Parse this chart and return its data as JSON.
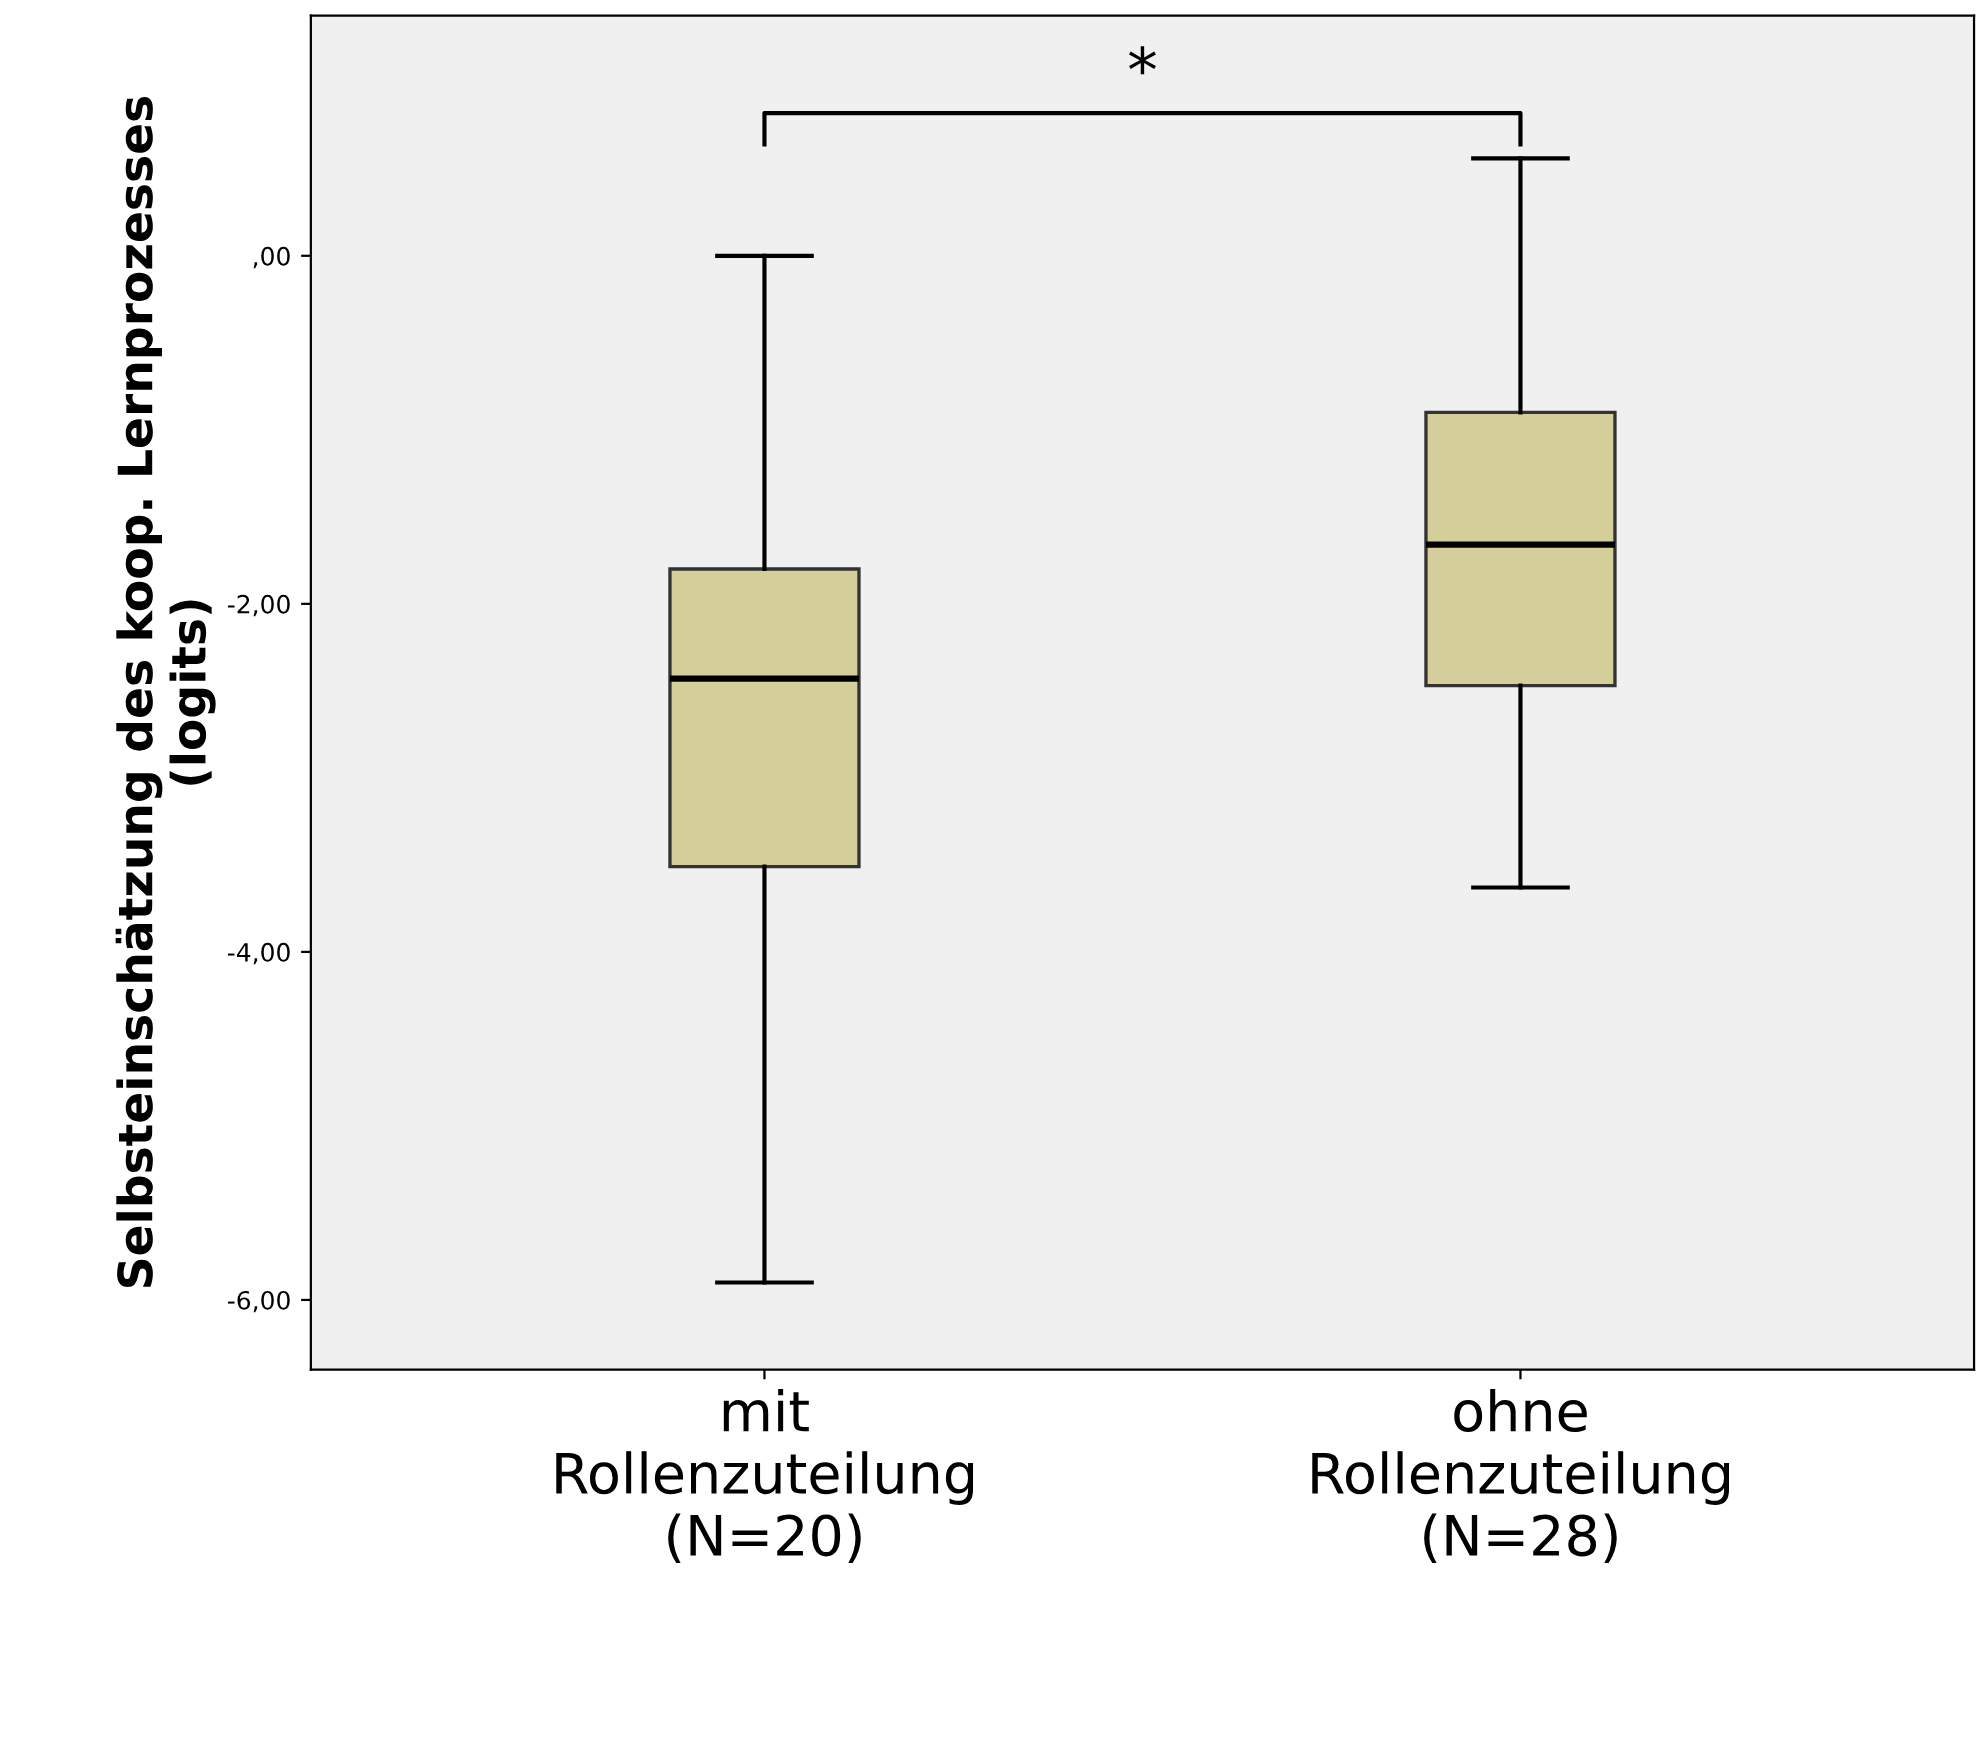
{
  "chart_data": {
    "type": "box",
    "ylabel": "Selbsteinschätzung des koop. Lernprozesses\n(logits)",
    "categories": [
      "mit\nRollenzuteilung\n(N=20)",
      "ohne\nRollenzuteilung\n(N=28)"
    ],
    "series": [
      {
        "color": "#d4ce9a",
        "boxes": [
          {
            "low": -5.9,
            "q1": -3.51,
            "median": -2.43,
            "q3": -1.8,
            "high": 0.0
          },
          {
            "low": -3.63,
            "q1": -2.47,
            "median": -1.66,
            "q3": -0.9,
            "high": 0.56
          }
        ]
      }
    ],
    "ylim": [
      -6.4,
      1.38
    ],
    "yticks": [
      {
        "value": -6,
        "label": "-6,00"
      },
      {
        "value": -4,
        "label": "-4,00"
      },
      {
        "value": -2,
        "label": "-2,00"
      },
      {
        "value": 0,
        "label": ",00"
      }
    ],
    "grid": false,
    "legend": false,
    "annotations": [
      "*"
    ]
  }
}
